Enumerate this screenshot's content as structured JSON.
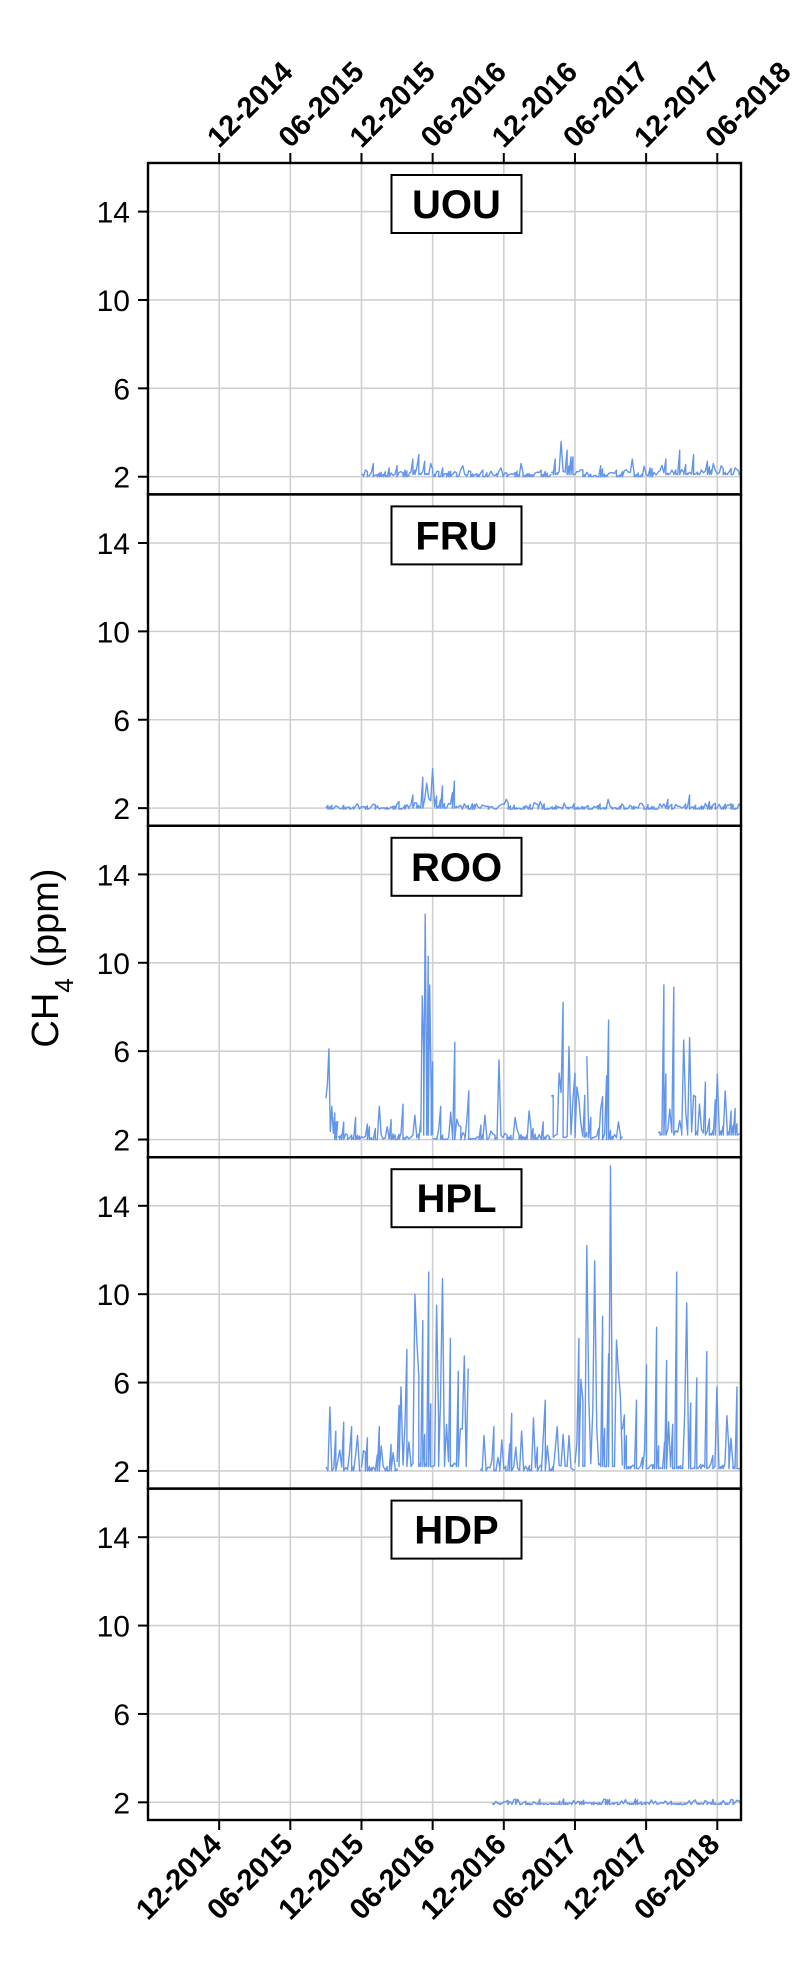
{
  "chart_data": {
    "type": "line",
    "ylabel": {
      "main": "CH",
      "sub": "4",
      "unit": " (ppm)"
    },
    "y_ticks": [
      2,
      6,
      10,
      14
    ],
    "ylim": [
      1.2,
      16.2
    ],
    "x_ticks": [
      "12-2014",
      "06-2015",
      "12-2015",
      "06-2016",
      "12-2016",
      "06-2017",
      "12-2017",
      "06-2018"
    ],
    "xlim": [
      "2014-06",
      "2018-08"
    ],
    "grid": true,
    "series_color": "#6495ED",
    "panels": [
      {
        "name": "UOU",
        "segments": [
          {
            "x_start": "2015-12",
            "x_end": "2016-04",
            "baseline": 2.0,
            "spikes": [
              2.3,
              2.6,
              2.2,
              2.4,
              2.5,
              2.3
            ]
          },
          {
            "x_start": "2016-04",
            "x_end": "2016-06",
            "baseline": 2.1,
            "spikes": [
              2.8,
              3.0,
              2.7,
              2.6
            ]
          },
          {
            "x_start": "2016-06",
            "x_end": "2017-04",
            "baseline": 2.0,
            "spikes": [
              2.4,
              2.5,
              2.3,
              2.4,
              2.6,
              2.3
            ]
          },
          {
            "x_start": "2017-04",
            "x_end": "2017-06",
            "baseline": 2.1,
            "spikes": [
              2.8,
              3.6,
              3.2,
              2.9
            ]
          },
          {
            "x_start": "2017-06",
            "x_end": "2018-01",
            "baseline": 2.0,
            "spikes": [
              2.3,
              2.5,
              2.3,
              2.8,
              2.4
            ]
          },
          {
            "x_start": "2018-01",
            "x_end": "2018-08",
            "baseline": 2.1,
            "spikes": [
              2.8,
              3.2,
              3.0,
              2.7,
              2.5,
              2.4
            ]
          }
        ]
      },
      {
        "name": "FRU",
        "segments": [
          {
            "x_start": "2015-09",
            "x_end": "2016-04",
            "baseline": 1.95,
            "spikes": [
              2.1,
              2.2,
              2.1,
              2.3
            ]
          },
          {
            "x_start": "2016-04",
            "x_end": "2016-08",
            "baseline": 2.0,
            "spikes": [
              2.6,
              3.4,
              3.8,
              3.0,
              2.7
            ]
          },
          {
            "x_start": "2016-08",
            "x_end": "2018-01",
            "baseline": 1.95,
            "spikes": [
              2.2,
              2.4,
              2.3,
              2.2,
              2.4,
              2.2
            ]
          },
          {
            "x_start": "2018-01",
            "x_end": "2018-08",
            "baseline": 1.95,
            "spikes": [
              2.4,
              2.6,
              2.3,
              2.2
            ]
          }
        ]
      },
      {
        "name": "ROO",
        "segments": [
          {
            "x_start": "2015-09",
            "x_end": "2015-10",
            "baseline": 2.0,
            "spikes": [
              4.5,
              6.1,
              3.5,
              3.2,
              2.8
            ]
          },
          {
            "x_start": "2015-10",
            "x_end": "2016-05",
            "baseline": 2.0,
            "spikes": [
              2.8,
              3.0,
              2.7,
              3.5,
              2.9,
              3.6,
              3.1
            ]
          },
          {
            "x_start": "2016-05",
            "x_end": "2016-06",
            "baseline": 2.2,
            "spikes": [
              8.5,
              6.0,
              12.2,
              10.3,
              9.0,
              4.0
            ]
          },
          {
            "x_start": "2016-06",
            "x_end": "2017-04",
            "baseline": 2.0,
            "spikes": [
              3.5,
              6.4,
              4.2,
              3.1,
              5.6,
              3.0,
              3.3,
              2.8
            ]
          },
          {
            "x_start": "2017-04",
            "x_end": "2017-07",
            "baseline": 2.1,
            "spikes": [
              4.0,
              5.0,
              8.2,
              6.2,
              5.0,
              3.8,
              4.0
            ]
          },
          {
            "x_start": "2017-07",
            "x_end": "2017-10",
            "baseline": 2.0,
            "spikes": [
              3.0,
              3.4,
              7.4,
              2.8
            ]
          },
          {
            "x_start": "2018-01",
            "x_end": "2018-08",
            "baseline": 2.2,
            "spikes": [
              9.0,
              8.9,
              6.5,
              4.0,
              4.6,
              3.8,
              4.2,
              3.4
            ]
          }
        ]
      },
      {
        "name": "HPL",
        "segments": [
          {
            "x_start": "2015-09",
            "x_end": "2015-12",
            "baseline": 2.0,
            "spikes": [
              4.9,
              3.8,
              4.2,
              4.0,
              3.6
            ]
          },
          {
            "x_start": "2015-12",
            "x_end": "2016-03",
            "baseline": 2.0,
            "spikes": [
              3.5,
              4.0,
              3.2
            ]
          },
          {
            "x_start": "2016-03",
            "x_end": "2016-09",
            "baseline": 2.2,
            "spikes": [
              5.8,
              7.5,
              10.0,
              8.8,
              11.0,
              9.5,
              10.7,
              8.0,
              6.5,
              7.2
            ]
          },
          {
            "x_start": "2016-10",
            "x_end": "2017-01",
            "baseline": 2.0,
            "spikes": [
              3.6,
              4.0,
              3.4,
              4.6
            ]
          },
          {
            "x_start": "2017-01",
            "x_end": "2017-06",
            "baseline": 2.0,
            "spikes": [
              3.8,
              4.4,
              5.2,
              4.0,
              3.6
            ]
          },
          {
            "x_start": "2017-06",
            "x_end": "2017-10",
            "baseline": 2.2,
            "spikes": [
              8.0,
              12.2,
              11.5,
              9.0,
              15.8,
              6.5
            ]
          },
          {
            "x_start": "2017-10",
            "x_end": "2018-08",
            "baseline": 2.1,
            "spikes": [
              3.6,
              5.2,
              6.8,
              8.5,
              7.0,
              11.0,
              9.6,
              6.2,
              7.4,
              5.8,
              4.5,
              5.8
            ]
          }
        ]
      },
      {
        "name": "HDP",
        "segments": [
          {
            "x_start": "2016-11",
            "x_end": "2018-08",
            "baseline": 1.9,
            "spikes": [
              2.0,
              2.0,
              2.0,
              2.0
            ]
          }
        ]
      }
    ]
  }
}
